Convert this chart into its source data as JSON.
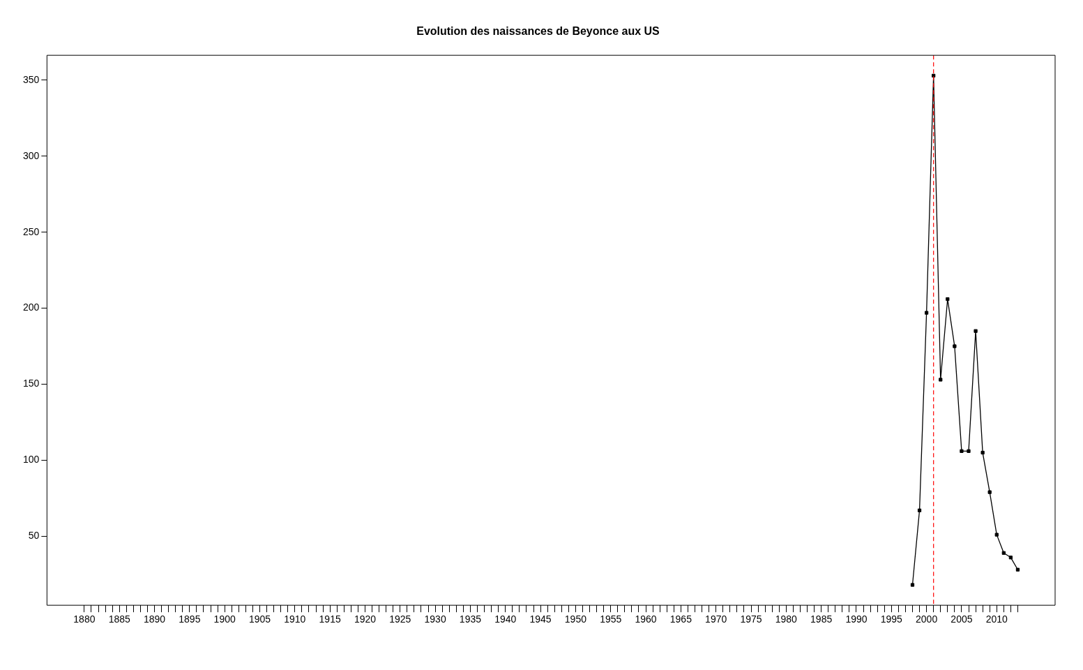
{
  "chart_data": {
    "type": "line",
    "title": "Evolution des naissances de Beyonce aux US",
    "x": [
      1998,
      1999,
      2000,
      2001,
      2002,
      2003,
      2004,
      2005,
      2006,
      2007,
      2008,
      2009,
      2010,
      2011,
      2012,
      2013
    ],
    "series": [
      {
        "color": "#000000",
        "values": [
          18,
          67,
          197,
          353,
          153,
          206,
          175,
          106,
          106,
          185,
          105,
          79,
          51,
          39,
          36,
          28
        ]
      }
    ],
    "xlim": [
      1874.68,
      2018.32
    ],
    "ylim": [
      4.6,
      366.4
    ],
    "yticks": [
      50,
      100,
      150,
      200,
      250,
      300,
      350
    ],
    "xticks": [
      1880,
      {
        "value": 1881,
        "label": null
      },
      {
        "value": 1882,
        "label": null
      },
      {
        "value": 1883,
        "label": null
      },
      {
        "value": 1884,
        "label": null
      },
      1885,
      {
        "value": 1886,
        "label": null
      },
      {
        "value": 1887,
        "label": null
      },
      {
        "value": 1888,
        "label": null
      },
      {
        "value": 1889,
        "label": null
      },
      1890,
      {
        "value": 1891,
        "label": null
      },
      {
        "value": 1892,
        "label": null
      },
      {
        "value": 1893,
        "label": null
      },
      {
        "value": 1894,
        "label": null
      },
      1895,
      {
        "value": 1896,
        "label": null
      },
      {
        "value": 1897,
        "label": null
      },
      {
        "value": 1898,
        "label": null
      },
      {
        "value": 1899,
        "label": null
      },
      1900,
      {
        "value": 1901,
        "label": null
      },
      {
        "value": 1902,
        "label": null
      },
      {
        "value": 1903,
        "label": null
      },
      {
        "value": 1904,
        "label": null
      },
      1905,
      {
        "value": 1906,
        "label": null
      },
      {
        "value": 1907,
        "label": null
      },
      {
        "value": 1908,
        "label": null
      },
      {
        "value": 1909,
        "label": null
      },
      1910,
      {
        "value": 1911,
        "label": null
      },
      {
        "value": 1912,
        "label": null
      },
      {
        "value": 1913,
        "label": null
      },
      {
        "value": 1914,
        "label": null
      },
      1915,
      {
        "value": 1916,
        "label": null
      },
      {
        "value": 1917,
        "label": null
      },
      {
        "value": 1918,
        "label": null
      },
      {
        "value": 1919,
        "label": null
      },
      1920,
      {
        "value": 1921,
        "label": null
      },
      {
        "value": 1922,
        "label": null
      },
      {
        "value": 1923,
        "label": null
      },
      {
        "value": 1924,
        "label": null
      },
      1925,
      {
        "value": 1926,
        "label": null
      },
      {
        "value": 1927,
        "label": null
      },
      {
        "value": 1928,
        "label": null
      },
      {
        "value": 1929,
        "label": null
      },
      1930,
      {
        "value": 1931,
        "label": null
      },
      {
        "value": 1932,
        "label": null
      },
      {
        "value": 1933,
        "label": null
      },
      {
        "value": 1934,
        "label": null
      },
      1935,
      {
        "value": 1936,
        "label": null
      },
      {
        "value": 1937,
        "label": null
      },
      {
        "value": 1938,
        "label": null
      },
      {
        "value": 1939,
        "label": null
      },
      1940,
      {
        "value": 1941,
        "label": null
      },
      {
        "value": 1942,
        "label": null
      },
      {
        "value": 1943,
        "label": null
      },
      {
        "value": 1944,
        "label": null
      },
      1945,
      {
        "value": 1946,
        "label": null
      },
      {
        "value": 1947,
        "label": null
      },
      {
        "value": 1948,
        "label": null
      },
      {
        "value": 1949,
        "label": null
      },
      1950,
      {
        "value": 1951,
        "label": null
      },
      {
        "value": 1952,
        "label": null
      },
      {
        "value": 1953,
        "label": null
      },
      {
        "value": 1954,
        "label": null
      },
      1955,
      {
        "value": 1956,
        "label": null
      },
      {
        "value": 1957,
        "label": null
      },
      {
        "value": 1958,
        "label": null
      },
      {
        "value": 1959,
        "label": null
      },
      1960,
      {
        "value": 1961,
        "label": null
      },
      {
        "value": 1962,
        "label": null
      },
      {
        "value": 1963,
        "label": null
      },
      {
        "value": 1964,
        "label": null
      },
      1965,
      {
        "value": 1966,
        "label": null
      },
      {
        "value": 1967,
        "label": null
      },
      {
        "value": 1968,
        "label": null
      },
      {
        "value": 1969,
        "label": null
      },
      1970,
      {
        "value": 1971,
        "label": null
      },
      {
        "value": 1972,
        "label": null
      },
      {
        "value": 1973,
        "label": null
      },
      {
        "value": 1974,
        "label": null
      },
      1975,
      {
        "value": 1976,
        "label": null
      },
      {
        "value": 1977,
        "label": null
      },
      {
        "value": 1978,
        "label": null
      },
      {
        "value": 1979,
        "label": null
      },
      1980,
      {
        "value": 1981,
        "label": null
      },
      {
        "value": 1982,
        "label": null
      },
      {
        "value": 1983,
        "label": null
      },
      {
        "value": 1984,
        "label": null
      },
      1985,
      {
        "value": 1986,
        "label": null
      },
      {
        "value": 1987,
        "label": null
      },
      {
        "value": 1988,
        "label": null
      },
      {
        "value": 1989,
        "label": null
      },
      1990,
      {
        "value": 1991,
        "label": null
      },
      {
        "value": 1992,
        "label": null
      },
      {
        "value": 1993,
        "label": null
      },
      {
        "value": 1994,
        "label": null
      },
      1995,
      {
        "value": 1996,
        "label": null
      },
      {
        "value": 1997,
        "label": null
      },
      {
        "value": 1998,
        "label": null
      },
      {
        "value": 1999,
        "label": null
      },
      2000,
      {
        "value": 2001,
        "label": null
      },
      {
        "value": 2002,
        "label": null
      },
      {
        "value": 2003,
        "label": null
      },
      {
        "value": 2004,
        "label": null
      },
      2005,
      {
        "value": 2006,
        "label": null
      },
      {
        "value": 2007,
        "label": null
      },
      {
        "value": 2008,
        "label": null
      },
      {
        "value": 2009,
        "label": null
      },
      2010,
      {
        "value": 2011,
        "label": null
      },
      {
        "value": 2012,
        "label": null
      },
      {
        "value": 2013,
        "label": null
      }
    ],
    "ref_lines": [
      {
        "axis": "x",
        "value": 2001,
        "color": "#ff0000",
        "line_style": "dashed"
      }
    ],
    "marker": "square",
    "grid": false,
    "legend": false
  }
}
